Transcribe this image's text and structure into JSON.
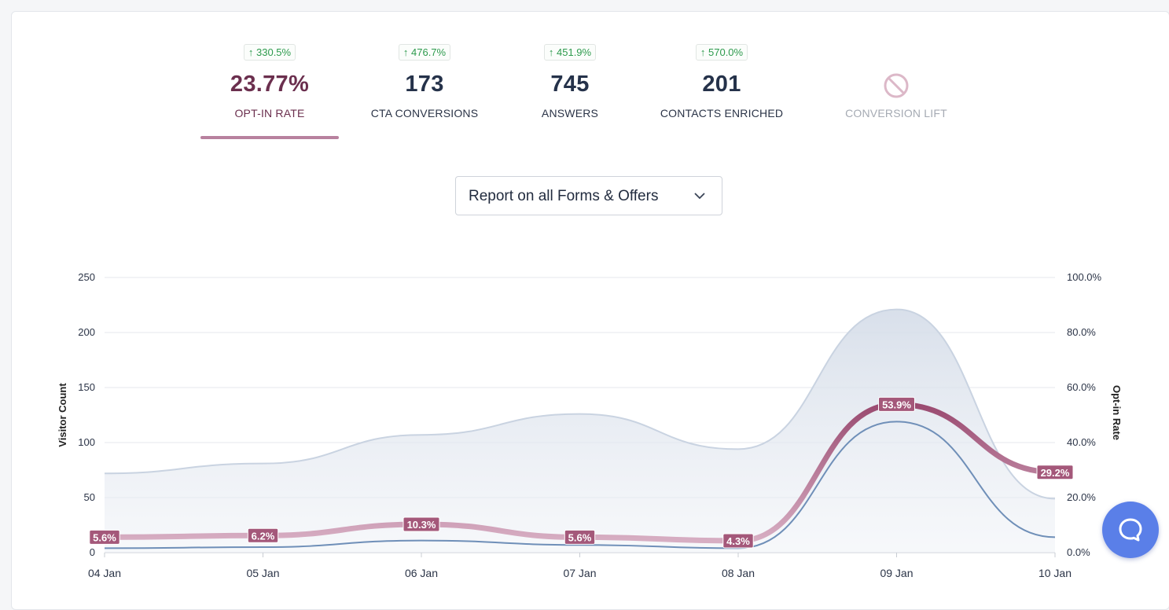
{
  "kpis": [
    {
      "change": "↑ 330.5%",
      "value": "23.77%",
      "label": "OPT-IN RATE"
    },
    {
      "change": "↑ 476.7%",
      "value": "173",
      "label": "CTA CONVERSIONS"
    },
    {
      "change": "↑ 451.9%",
      "value": "745",
      "label": "ANSWERS"
    },
    {
      "change": "↑ 570.0%",
      "value": "201",
      "label": "CONTACTS ENRICHED"
    },
    {
      "label": "CONVERSION LIFT"
    }
  ],
  "report_select": {
    "value": "Report on all Forms & Offers"
  },
  "colors": {
    "accent": "#b8819e",
    "optin_line": "#a4587a",
    "visitor_area_stroke": "#c9d3e1",
    "visitor_area_fill": "#e6ebf3",
    "conversion_line": "#6f8fb8",
    "help_button": "#5a7fe8",
    "positive_change": "#2e9b4e"
  },
  "icons": {
    "disabled_kpi": "no-entry-icon",
    "dropdown": "chevron-down-icon",
    "help": "chat-bubble-icon"
  },
  "chart_data": {
    "type": "area",
    "x": [
      "04 Jan",
      "05 Jan",
      "06 Jan",
      "07 Jan",
      "08 Jan",
      "09 Jan",
      "10 Jan"
    ],
    "ylabel": "Visitor Count",
    "y2label": "Opt-in Rate",
    "ylim": [
      0,
      250
    ],
    "y2lim": [
      0,
      100
    ],
    "yticks": [
      "0",
      "50",
      "100",
      "150",
      "200",
      "250"
    ],
    "y2ticks": [
      "0.0%",
      "20.0%",
      "40.0%",
      "60.0%",
      "80.0%",
      "100.0%"
    ],
    "grid": true,
    "series": [
      {
        "axis": "left",
        "style": "area",
        "values": [
          72,
          81,
          107,
          126,
          94,
          221,
          49
        ]
      },
      {
        "axis": "left",
        "style": "line",
        "values": [
          4,
          5,
          11,
          7,
          4,
          119,
          14
        ]
      },
      {
        "axis": "right",
        "style": "thick-line",
        "values": [
          5.6,
          6.2,
          10.3,
          5.6,
          4.3,
          53.9,
          29.2
        ],
        "labels": [
          "5.6%",
          "6.2%",
          "10.3%",
          "5.6%",
          "4.3%",
          "53.9%",
          "29.2%"
        ]
      }
    ]
  }
}
